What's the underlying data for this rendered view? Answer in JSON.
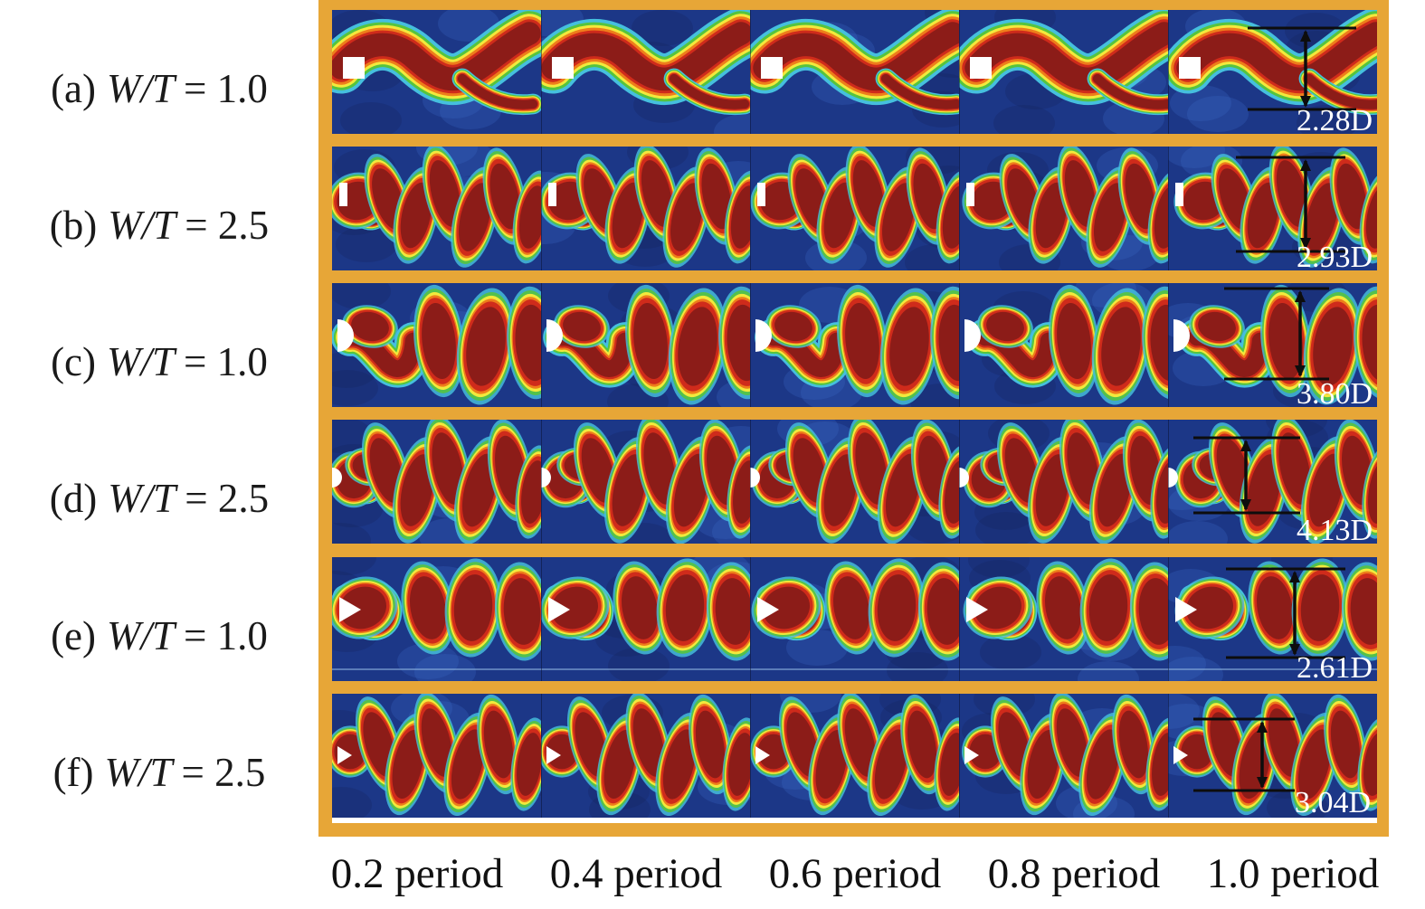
{
  "figure": {
    "description": "Vorticity contour snapshots of vortex shedding behind bluff cylinders over one shedding period",
    "grid": {
      "rows": 6,
      "cols": 5
    },
    "rows": [
      {
        "id": "a",
        "prefix": "(a)",
        "variable": "W/T",
        "rel_value": "= 1.0",
        "full_label": "(a) W/T = 1.0",
        "measurement": "2.28D",
        "obstacle": "square-cylinder",
        "wake": "sinuous-wavy-band"
      },
      {
        "id": "b",
        "prefix": "(b)",
        "variable": "W/T",
        "rel_value": "= 2.5",
        "full_label": "(b) W/T = 2.5",
        "measurement": "2.93D",
        "obstacle": "thin-rectangular-plate",
        "wake": "alternating-teardrop-vortices"
      },
      {
        "id": "c",
        "prefix": "(c)",
        "variable": "W/T",
        "rel_value": "= 1.0",
        "full_label": "(c) W/T = 1.0",
        "measurement": "3.80D",
        "obstacle": "d-section-semicircle",
        "wake": "large-vertical-vortices"
      },
      {
        "id": "d",
        "prefix": "(d)",
        "variable": "W/T",
        "rel_value": "= 2.5",
        "full_label": "(d) W/T = 2.5",
        "measurement": "4.13D",
        "obstacle": "small-d-section-semicircle",
        "wake": "alternating-teardrop-vortices"
      },
      {
        "id": "e",
        "prefix": "(e)",
        "variable": "W/T",
        "rel_value": "= 1.0",
        "full_label": "(e) W/T = 1.0",
        "measurement": "2.61D",
        "obstacle": "triangular-prism",
        "wake": "large-round-vortices"
      },
      {
        "id": "f",
        "prefix": "(f)",
        "variable": "W/T",
        "rel_value": "= 2.5",
        "full_label": "(f) W/T = 2.5",
        "measurement": "3.04D",
        "obstacle": "small-triangular-prism",
        "wake": "alternating-teardrop-vortices"
      }
    ],
    "time_labels": [
      "0.2 period",
      "0.4 period",
      "0.6 period",
      "0.8 period",
      "1.0 period"
    ],
    "colors": {
      "frame": "#E7A637",
      "panel_base": "#1C3787",
      "panel_dark_patch": "#14255C",
      "panel_light_patch": "#3B67C6",
      "vortex_core": "#8C1C18",
      "vortex_red": "#CF2B1B",
      "vortex_orange": "#EE7D1B",
      "vortex_yellow": "#F2E93C",
      "vortex_green": "#55C43E",
      "vortex_cyan": "#45BFDE",
      "obstacle": "#FFFFFF",
      "annotation_line": "#0D0D0D",
      "annotation_text": "#FFFFFF"
    }
  }
}
